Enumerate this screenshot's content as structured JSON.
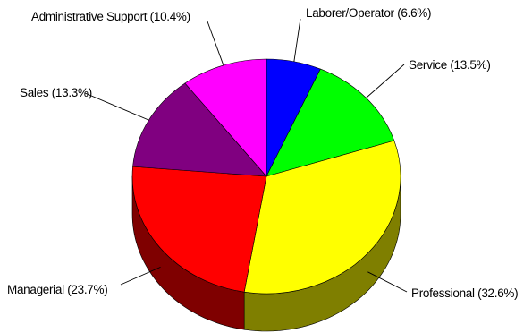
{
  "chart_data": {
    "type": "pie",
    "title": "",
    "three_d": true,
    "legend": "none",
    "slices": [
      {
        "label": "Laborer/Operator (6.6%)",
        "name": "Laborer/Operator",
        "value": 6.6,
        "color": "#0000ff",
        "side": "#00007f"
      },
      {
        "label": "Service (13.5%)",
        "name": "Service",
        "value": 13.5,
        "color": "#00ff00",
        "side": "#007f00"
      },
      {
        "label": "Professional (32.6%)",
        "name": "Professional",
        "value": 32.6,
        "color": "#ffff00",
        "side": "#7f7f00"
      },
      {
        "label": "Managerial (23.7%)",
        "name": "Managerial",
        "value": 23.7,
        "color": "#ff0000",
        "side": "#7f0000"
      },
      {
        "label": "Sales (13.3%)",
        "name": "Sales",
        "value": 13.3,
        "color": "#800080",
        "side": "#400040"
      },
      {
        "label": "Administrative Support (10.4%)",
        "name": "Administrative Support",
        "value": 10.4,
        "color": "#ff00ff",
        "side": "#7f007f"
      }
    ]
  }
}
